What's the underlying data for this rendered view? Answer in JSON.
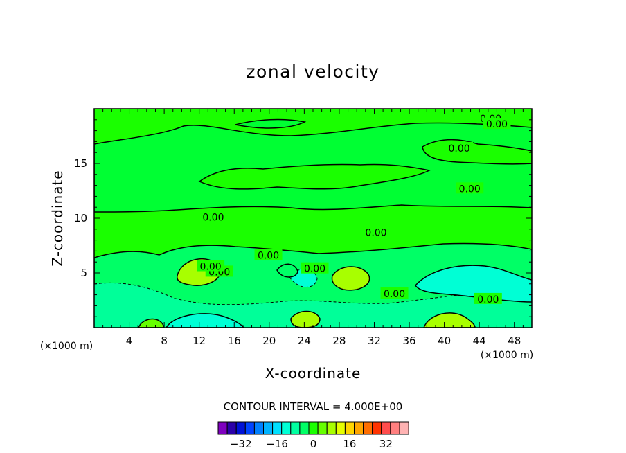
{
  "chart_data": {
    "type": "contour",
    "title": "zonal velocity",
    "xlabel": "X-coordinate",
    "ylabel": "Z-coordinate",
    "x_unit_left": "(×1000 m)",
    "x_unit_right": "(×1000 m)",
    "xlim": [
      0,
      50
    ],
    "ylim": [
      0,
      20
    ],
    "x_ticks": [
      4,
      8,
      12,
      16,
      20,
      24,
      28,
      32,
      36,
      40,
      44,
      48
    ],
    "y_ticks": [
      5,
      10,
      15
    ],
    "contour_interval_text": "CONTOUR INTERVAL = 4.000E+00",
    "contour_label": "0.00",
    "colorbar": {
      "ticks": [
        -32,
        -16,
        0,
        16,
        32
      ],
      "tick_labels": [
        "−32",
        "−16",
        "0",
        "16",
        "32"
      ],
      "colors": [
        "#7f00bf",
        "#2b00a8",
        "#0011d6",
        "#0044ff",
        "#0080ff",
        "#00b3ff",
        "#00e0ff",
        "#00ffd5",
        "#00ffa0",
        "#00ff66",
        "#1aff00",
        "#66ff00",
        "#a8ff00",
        "#e6ff00",
        "#ffd500",
        "#ffa600",
        "#ff6e00",
        "#ff3300",
        "#ff4d4d",
        "#ff7f7f",
        "#ffb3b3"
      ]
    }
  }
}
